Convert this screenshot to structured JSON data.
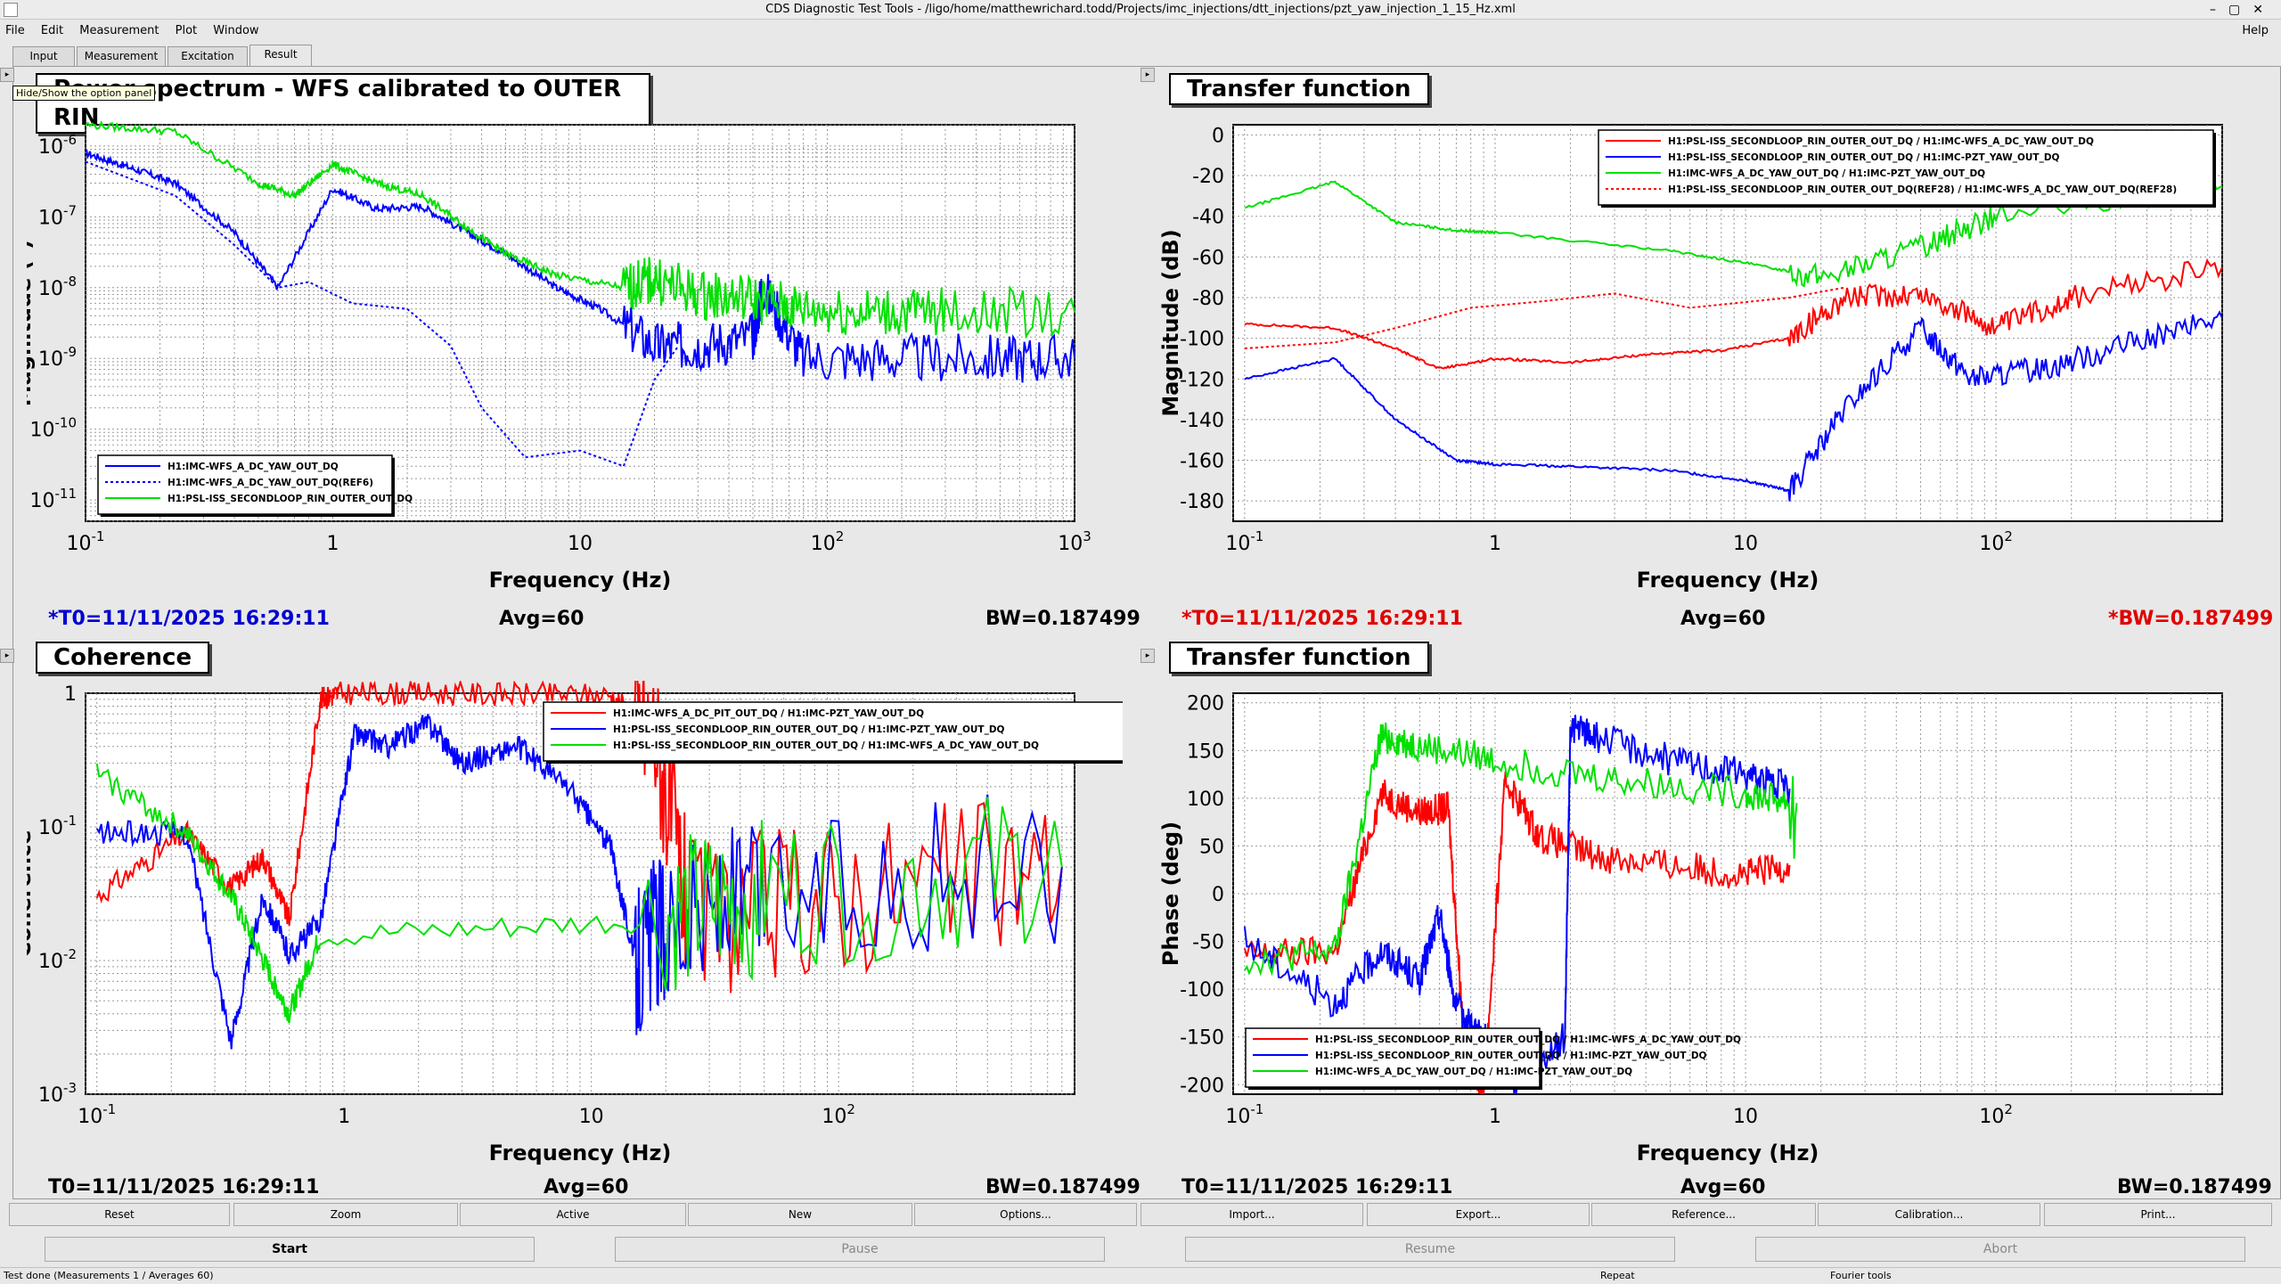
{
  "window": {
    "title": "CDS Diagnostic Test Tools - /ligo/home/matthewrichard.todd/Projects/imc_injections/dtt_injections/pzt_yaw_injection_1_15_Hz.xml"
  },
  "menu": {
    "items": [
      "File",
      "Edit",
      "Measurement",
      "Plot",
      "Window"
    ],
    "help": "Help"
  },
  "tabs": [
    {
      "label": "Input"
    },
    {
      "label": "Measurement"
    },
    {
      "label": "Excitation"
    },
    {
      "label": "Result"
    }
  ],
  "tooltip": "Hide/Show the option panel",
  "panels": [
    {
      "title": "Power spectrum - WFS calibrated to OUTER RIN",
      "t0": "*T0=11/11/2025 16:29:11",
      "avg": "Avg=60",
      "bw": "BW=0.187499",
      "t0_color": "#0000d0",
      "bw_color": "#000000"
    },
    {
      "title": "Transfer function",
      "t0": "*T0=11/11/2025 16:29:11",
      "avg": "Avg=60",
      "bw": "*BW=0.187499",
      "t0_color": "#e00000",
      "bw_color": "#e00000"
    },
    {
      "title": "Coherence",
      "t0": "T0=11/11/2025 16:29:11",
      "avg": "Avg=60",
      "bw": "BW=0.187499",
      "t0_color": "#000000",
      "bw_color": "#000000"
    },
    {
      "title": "Transfer function",
      "t0": "T0=11/11/2025 16:29:11",
      "avg": "Avg=60",
      "bw": "BW=0.187499",
      "t0_color": "#000000",
      "bw_color": "#000000"
    }
  ],
  "buttons_row1": [
    "Reset",
    "Zoom",
    "Active",
    "New",
    "Options...",
    "Import...",
    "Export...",
    "Reference...",
    "Calibration...",
    "Print..."
  ],
  "buttons_row2": [
    "Start",
    "Pause",
    "Resume",
    "Abort"
  ],
  "status": {
    "message": "Test done (Measurements 1 / Averages 60)",
    "repeat": "Repeat",
    "tools": "Fourier tools"
  },
  "colors": {
    "red": "#ff0000",
    "blue": "#0000ff",
    "green": "#00e000"
  },
  "chart_data": [
    {
      "type": "line",
      "title": "Power spectrum - WFS calibrated to OUTER RIN",
      "xlabel": "Frequency (Hz)",
      "ylabel": "Magnitude (*)",
      "xscale": "log",
      "yscale": "log",
      "xlim": [
        0.1,
        1000
      ],
      "ylim": [
        5e-12,
        2e-06
      ],
      "xticks": [
        "10^{-1}",
        "1",
        "10",
        "10^{2}",
        "10^{3}"
      ],
      "yticks": [
        "10^{-11}",
        "10^{-10}",
        "10^{-9}",
        "10^{-8}",
        "10^{-7}",
        "10^{-6}"
      ],
      "legend": "bottom-left",
      "series": [
        {
          "name": "H1:IMC-WFS_A_DC_YAW_OUT_DQ",
          "color": "#0000ff",
          "style": "solid",
          "x": [
            0.1,
            0.15,
            0.23,
            0.4,
            0.6,
            1.0,
            1.5,
            2.3,
            3.5,
            5,
            8,
            12,
            20,
            30,
            50,
            55,
            80,
            200,
            500,
            1000
          ],
          "y": [
            8e-07,
            5e-07,
            3e-07,
            6e-08,
            1e-08,
            2.5e-07,
            1.3e-07,
            1.4e-07,
            6e-08,
            3e-08,
            1e-08,
            5e-09,
            1.5e-09,
            1.5e-09,
            2e-09,
            1e-08,
            1e-09,
            1e-09,
            1e-09,
            1e-09
          ]
        },
        {
          "name": "H1:IMC-WFS_A_DC_YAW_OUT_DQ(REF6)",
          "color": "#0000ff",
          "style": "dotted",
          "x": [
            0.1,
            0.23,
            0.4,
            0.6,
            0.8,
            1.2,
            2,
            3,
            4,
            6,
            10,
            15,
            20,
            25
          ],
          "y": [
            6e-07,
            2e-07,
            4e-08,
            1e-08,
            1.2e-08,
            6e-09,
            5e-09,
            1.5e-09,
            2e-10,
            4e-11,
            5e-11,
            3e-11,
            5e-10,
            1.5e-09
          ]
        },
        {
          "name": "H1:PSL-ISS_SECONDLOOP_RIN_OUTER_OUT_DQ",
          "color": "#00e000",
          "style": "solid",
          "x": [
            0.1,
            0.23,
            0.5,
            0.7,
            1.0,
            1.5,
            2.3,
            3.5,
            5,
            8,
            15,
            20,
            30,
            50,
            80,
            150,
            300,
            1000
          ],
          "y": [
            2e-06,
            1.6e-06,
            3e-07,
            2e-07,
            5.5e-07,
            3e-07,
            2e-07,
            7e-08,
            3e-08,
            1.5e-08,
            1e-08,
            1.3e-08,
            8e-09,
            7e-09,
            5e-09,
            4.5e-09,
            4.5e-09,
            4.5e-09
          ]
        }
      ]
    },
    {
      "type": "line",
      "title": "Transfer function",
      "xlabel": "Frequency (Hz)",
      "ylabel": "Magnitude (dB)",
      "xscale": "log",
      "xlim": [
        0.09,
        800
      ],
      "ylim": [
        -190,
        5
      ],
      "xticks": [
        "10^{-1}",
        "1",
        "10",
        "10^{2}"
      ],
      "yticks": [
        "0",
        "-20",
        "-40",
        "-60",
        "-80",
        "-100",
        "-120",
        "-140",
        "-160",
        "-180"
      ],
      "legend": "top-right",
      "series": [
        {
          "name": "H1:PSL-ISS_SECONDLOOP_RIN_OUTER_OUT_DQ / H1:IMC-WFS_A_DC_YAW_OUT_DQ",
          "color": "#ff0000",
          "style": "solid",
          "x": [
            0.1,
            0.23,
            0.4,
            0.6,
            1,
            2,
            4,
            8,
            15,
            25,
            50,
            100,
            200,
            800
          ],
          "y": [
            -93,
            -95,
            -105,
            -115,
            -110,
            -112,
            -108,
            -106,
            -100,
            -80,
            -78,
            -95,
            -80,
            -65
          ]
        },
        {
          "name": "H1:PSL-ISS_SECONDLOOP_RIN_OUTER_OUT_DQ / H1:IMC-PZT_YAW_OUT_DQ",
          "color": "#0000ff",
          "style": "solid",
          "x": [
            0.1,
            0.23,
            0.4,
            0.7,
            1,
            2,
            5,
            10,
            15,
            25,
            50,
            80,
            150,
            300,
            800
          ],
          "y": [
            -120,
            -110,
            -140,
            -160,
            -162,
            -163,
            -165,
            -170,
            -175,
            -135,
            -95,
            -120,
            -115,
            -105,
            -90
          ]
        },
        {
          "name": "H1:IMC-WFS_A_DC_YAW_OUT_DQ / H1:IMC-PZT_YAW_OUT_DQ",
          "color": "#00e000",
          "style": "solid",
          "x": [
            0.1,
            0.23,
            0.4,
            0.7,
            1,
            5,
            10,
            20,
            50,
            100,
            800
          ],
          "y": [
            -36,
            -23,
            -43,
            -47,
            -48,
            -57,
            -63,
            -70,
            -55,
            -40,
            -25
          ]
        },
        {
          "name": "H1:PSL-ISS_SECONDLOOP_RIN_OUTER_OUT_DQ(REF28) / H1:IMC-WFS_A_DC_YAW_OUT_DQ(REF28)",
          "color": "#ff0000",
          "style": "dotted",
          "x": [
            0.1,
            0.23,
            0.4,
            0.8,
            1.5,
            3,
            6,
            15,
            25
          ],
          "y": [
            -105,
            -102,
            -95,
            -85,
            -82,
            -78,
            -85,
            -80,
            -75
          ]
        }
      ]
    },
    {
      "type": "line",
      "title": "Coherence",
      "xlabel": "Frequency (Hz)",
      "ylabel": "Coherence",
      "xscale": "log",
      "yscale": "log",
      "xlim": [
        0.09,
        900
      ],
      "ylim": [
        0.001,
        1
      ],
      "xticks": [
        "10^{-1}",
        "1",
        "10",
        "10^{2}"
      ],
      "yticks": [
        "10^{-3}",
        "10^{-2}",
        "10^{-1}",
        "1"
      ],
      "legend": "top-right",
      "series": [
        {
          "name": "H1:IMC-WFS_A_DC_PIT_OUT_DQ / H1:IMC-PZT_YAW_OUT_DQ",
          "color": "#ff0000",
          "style": "solid",
          "x": [
            0.1,
            0.23,
            0.35,
            0.47,
            0.6,
            0.8,
            0.95,
            2,
            5,
            12,
            18,
            25,
            100,
            800
          ],
          "y": [
            0.03,
            0.09,
            0.035,
            0.06,
            0.02,
            0.9,
            1.0,
            1.0,
            0.98,
            0.97,
            0.5,
            0.02,
            0.03,
            0.05
          ]
        },
        {
          "name": "H1:PSL-ISS_SECONDLOOP_RIN_OUTER_OUT_DQ / H1:IMC-PZT_YAW_OUT_DQ",
          "color": "#0000ff",
          "style": "solid",
          "x": [
            0.1,
            0.23,
            0.35,
            0.47,
            0.6,
            0.8,
            1.1,
            1.5,
            2.2,
            3,
            5,
            8,
            12,
            15,
            20,
            50,
            800
          ],
          "y": [
            0.09,
            0.09,
            0.0025,
            0.03,
            0.011,
            0.02,
            0.5,
            0.4,
            0.6,
            0.3,
            0.4,
            0.2,
            0.07,
            0.01,
            0.02,
            0.03,
            0.05
          ]
        },
        {
          "name": "H1:PSL-ISS_SECONDLOOP_RIN_OUTER_OUT_DQ / H1:IMC-WFS_A_DC_YAW_OUT_DQ",
          "color": "#00e000",
          "style": "solid",
          "x": [
            0.1,
            0.23,
            0.35,
            0.47,
            0.6,
            0.8,
            20,
            50,
            800
          ],
          "y": [
            0.25,
            0.09,
            0.03,
            0.01,
            0.004,
            0.015,
            0.02,
            0.03,
            0.05
          ]
        }
      ]
    },
    {
      "type": "line",
      "title": "Transfer function",
      "xlabel": "Frequency (Hz)",
      "ylabel": "Phase (deg)",
      "xscale": "log",
      "xlim": [
        0.09,
        800
      ],
      "ylim": [
        -210,
        210
      ],
      "xticks": [
        "10^{-1}",
        "1",
        "10",
        "10^{2}"
      ],
      "yticks": [
        "200",
        "150",
        "100",
        "50",
        "0",
        "-50",
        "-100",
        "-150",
        "-200"
      ],
      "legend": "bottom-left",
      "series": [
        {
          "name": "H1:PSL-ISS_SECONDLOOP_RIN_OUTER_OUT_DQ / H1:IMC-WFS_A_DC_YAW_OUT_DQ",
          "color": "#ff0000",
          "style": "solid",
          "x": [
            0.1,
            0.23,
            0.35,
            0.5,
            0.65,
            0.75,
            0.9,
            1.1,
            1.5,
            2.5,
            5,
            10,
            15
          ],
          "y": [
            -65,
            -60,
            105,
            85,
            90,
            -150,
            -210,
            120,
            60,
            40,
            30,
            20,
            30
          ]
        },
        {
          "name": "H1:PSL-ISS_SECONDLOOP_RIN_OUTER_OUT_DQ / H1:IMC-PZT_YAW_OUT_DQ",
          "color": "#0000ff",
          "style": "solid",
          "x": [
            0.1,
            0.23,
            0.35,
            0.5,
            0.6,
            0.7,
            0.9,
            1.2,
            1.9,
            2.0,
            2.5,
            5,
            10,
            15
          ],
          "y": [
            -50,
            -115,
            -60,
            -90,
            -20,
            -120,
            -150,
            -200,
            -150,
            175,
            165,
            140,
            125,
            110
          ]
        },
        {
          "name": "H1:IMC-WFS_A_DC_YAW_OUT_DQ / H1:IMC-PZT_YAW_OUT_DQ",
          "color": "#00e000",
          "style": "solid",
          "x": [
            0.1,
            0.23,
            0.35,
            0.5,
            1,
            3,
            10,
            16
          ],
          "y": [
            -70,
            -60,
            165,
            155,
            140,
            120,
            105,
            95
          ]
        }
      ]
    }
  ]
}
